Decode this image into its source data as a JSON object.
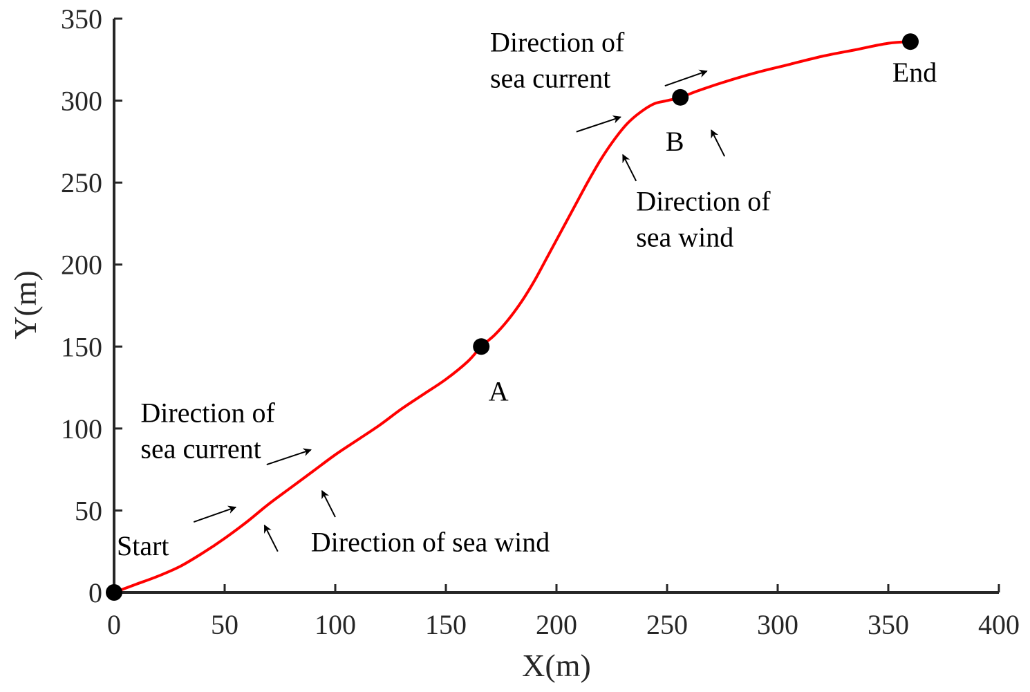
{
  "chart_data": {
    "type": "line",
    "title": "",
    "xlabel": "X(m)",
    "ylabel": "Y(m)",
    "xlim": [
      0,
      400
    ],
    "ylim": [
      0,
      350
    ],
    "xticks": [
      0,
      50,
      100,
      150,
      200,
      250,
      300,
      350,
      400
    ],
    "yticks": [
      0,
      50,
      100,
      150,
      200,
      250,
      300,
      350
    ],
    "grid": false,
    "series": [
      {
        "color": "#ff0000",
        "x": [
          0,
          10,
          20,
          30,
          40,
          50,
          60,
          70,
          80,
          90,
          100,
          110,
          120,
          130,
          140,
          150,
          160,
          166,
          172,
          178,
          184,
          190,
          196,
          202,
          208,
          214,
          220,
          226,
          232,
          238,
          244,
          250,
          256,
          264,
          275,
          290,
          305,
          320,
          335,
          350,
          360
        ],
        "y": [
          0,
          5,
          10,
          16,
          24,
          33,
          43,
          54,
          64,
          74,
          84,
          93,
          102,
          112,
          121,
          130,
          141,
          150,
          157,
          166,
          177,
          190,
          205,
          220,
          235,
          250,
          264,
          276,
          286,
          293,
          298,
          300,
          302,
          306,
          311,
          317,
          322,
          327,
          331,
          335,
          336
        ]
      }
    ],
    "points": [
      {
        "label": "Start",
        "x": 0,
        "y": 0
      },
      {
        "label": "A",
        "x": 166,
        "y": 150
      },
      {
        "label": "B",
        "x": 256,
        "y": 302
      },
      {
        "label": "End",
        "x": 360,
        "y": 336
      }
    ],
    "annotations": [
      {
        "name": "current-label-1",
        "lines": [
          "Direction of",
          "sea current"
        ],
        "x": 12,
        "y": 104
      },
      {
        "name": "wind-label-1",
        "lines": [
          "Direction of sea wind"
        ],
        "x": 89,
        "y": 25
      },
      {
        "name": "current-label-2",
        "lines": [
          "Direction of",
          "sea current"
        ],
        "x": 170,
        "y": 330
      },
      {
        "name": "wind-label-2",
        "lines": [
          "Direction of",
          "sea wind"
        ],
        "x": 236,
        "y": 233
      }
    ],
    "arrows": [
      {
        "name": "sea-current-arrow-1",
        "from": [
          36,
          43
        ],
        "to": [
          55,
          52
        ]
      },
      {
        "name": "sea-current-arrow-2",
        "from": [
          69,
          78
        ],
        "to": [
          89,
          87
        ]
      },
      {
        "name": "sea-wind-arrow-1",
        "from": [
          74,
          25
        ],
        "to": [
          68,
          41
        ]
      },
      {
        "name": "sea-wind-arrow-2",
        "from": [
          100,
          46
        ],
        "to": [
          94,
          62
        ]
      },
      {
        "name": "sea-current-arrow-3",
        "from": [
          209,
          281
        ],
        "to": [
          229,
          290
        ]
      },
      {
        "name": "sea-current-arrow-4",
        "from": [
          249,
          309
        ],
        "to": [
          268,
          318
        ]
      },
      {
        "name": "sea-wind-arrow-3",
        "from": [
          236,
          251
        ],
        "to": [
          230,
          267
        ]
      },
      {
        "name": "sea-wind-arrow-4",
        "from": [
          276,
          266
        ],
        "to": [
          270,
          282
        ]
      }
    ]
  }
}
